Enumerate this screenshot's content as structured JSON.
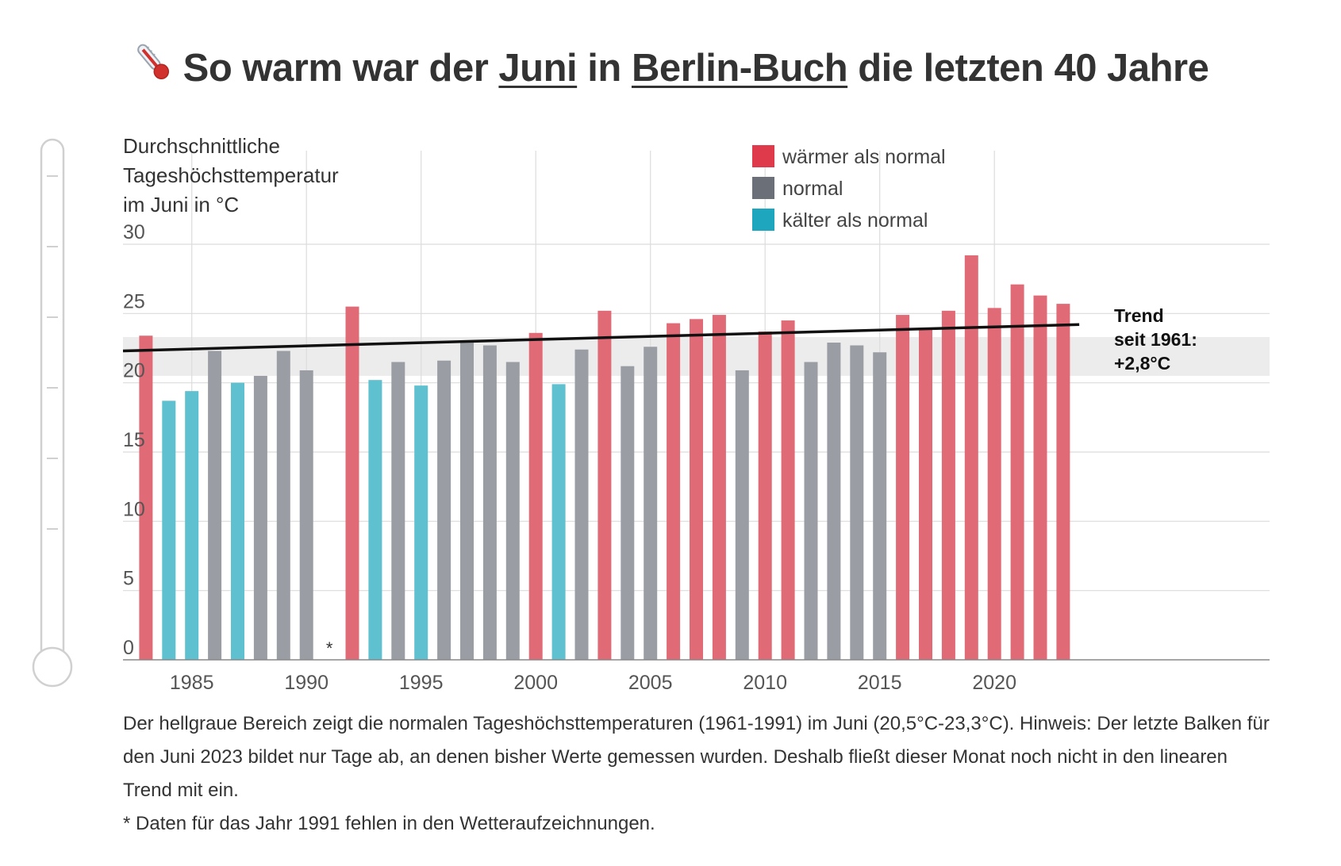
{
  "title": {
    "pre": "So warm war der ",
    "month": "Juni",
    "mid": " in ",
    "place": "Berlin-Buch",
    "post": " die letzten 40 Jahre"
  },
  "colors": {
    "warm": "#e06a76",
    "normal": "#9a9ea4",
    "cold": "#5fc0cf",
    "legend_warm": "#de3a4c",
    "legend_normal": "#6b7078",
    "legend_cold": "#1ea6be",
    "normal_band": "#ececec",
    "grid": "#dcdcdc",
    "trend": "#111111"
  },
  "legend": [
    {
      "key": "warm",
      "label": "wärmer als normal"
    },
    {
      "key": "normal",
      "label": "normal"
    },
    {
      "key": "cold",
      "label": "kälter als normal"
    }
  ],
  "trend_label": "Trend\nseit 1961:\n+2,8°C",
  "missing_marker": "*",
  "footnote": {
    "main": "Der hellgraue Bereich zeigt die normalen Tageshöchsttemperaturen (1961-1991) im Juni (20,5°C-23,3°C). Hinweis: Der letzte Balken für den Juni 2023 bildet nur Tage ab, an denen bisher Werte gemessen wurden. Deshalb fließt dieser Monat noch nicht in den linearen Trend mit ein.",
    "missing": "* Daten für das Jahr 1991 fehlen in den Wetteraufzeichnungen."
  },
  "chart_data": {
    "type": "bar",
    "title": "So warm war der Juni in Berlin-Buch die letzten 40 Jahre",
    "ylabel": "Durchschnittliche\nTageshöchsttemperatur\nim Juni in °C",
    "xlabel": "",
    "ylim": [
      0,
      30
    ],
    "yticks": [
      0,
      5,
      10,
      15,
      20,
      25,
      30
    ],
    "xticks": [
      1985,
      1990,
      1995,
      2000,
      2005,
      2010,
      2015,
      2020
    ],
    "x_range": [
      1982,
      2032
    ],
    "grid": true,
    "legend_position": "top",
    "normal_range": [
      20.5,
      23.3
    ],
    "trend": {
      "start_year": 1982,
      "start_value": 22.3,
      "end_year": 2023.7,
      "end_value": 24.2
    },
    "missing_years": [
      1991
    ],
    "bars": [
      {
        "year": 1983,
        "value": 23.4,
        "cat": "warm"
      },
      {
        "year": 1984,
        "value": 18.7,
        "cat": "cold"
      },
      {
        "year": 1985,
        "value": 19.4,
        "cat": "cold"
      },
      {
        "year": 1986,
        "value": 22.3,
        "cat": "normal"
      },
      {
        "year": 1987,
        "value": 20.0,
        "cat": "cold"
      },
      {
        "year": 1988,
        "value": 20.5,
        "cat": "normal"
      },
      {
        "year": 1989,
        "value": 22.3,
        "cat": "normal"
      },
      {
        "year": 1990,
        "value": 20.9,
        "cat": "normal"
      },
      {
        "year": 1992,
        "value": 25.5,
        "cat": "warm"
      },
      {
        "year": 1993,
        "value": 20.2,
        "cat": "cold"
      },
      {
        "year": 1994,
        "value": 21.5,
        "cat": "normal"
      },
      {
        "year": 1995,
        "value": 19.8,
        "cat": "cold"
      },
      {
        "year": 1996,
        "value": 21.6,
        "cat": "normal"
      },
      {
        "year": 1997,
        "value": 22.9,
        "cat": "normal"
      },
      {
        "year": 1998,
        "value": 22.7,
        "cat": "normal"
      },
      {
        "year": 1999,
        "value": 21.5,
        "cat": "normal"
      },
      {
        "year": 2000,
        "value": 23.6,
        "cat": "warm"
      },
      {
        "year": 2001,
        "value": 19.9,
        "cat": "cold"
      },
      {
        "year": 2002,
        "value": 22.4,
        "cat": "normal"
      },
      {
        "year": 2003,
        "value": 25.2,
        "cat": "warm"
      },
      {
        "year": 2004,
        "value": 21.2,
        "cat": "normal"
      },
      {
        "year": 2005,
        "value": 22.6,
        "cat": "normal"
      },
      {
        "year": 2006,
        "value": 24.3,
        "cat": "warm"
      },
      {
        "year": 2007,
        "value": 24.6,
        "cat": "warm"
      },
      {
        "year": 2008,
        "value": 24.9,
        "cat": "warm"
      },
      {
        "year": 2009,
        "value": 20.9,
        "cat": "normal"
      },
      {
        "year": 2010,
        "value": 23.7,
        "cat": "warm"
      },
      {
        "year": 2011,
        "value": 24.5,
        "cat": "warm"
      },
      {
        "year": 2012,
        "value": 21.5,
        "cat": "normal"
      },
      {
        "year": 2013,
        "value": 22.9,
        "cat": "normal"
      },
      {
        "year": 2014,
        "value": 22.7,
        "cat": "normal"
      },
      {
        "year": 2015,
        "value": 22.2,
        "cat": "normal"
      },
      {
        "year": 2016,
        "value": 24.9,
        "cat": "warm"
      },
      {
        "year": 2017,
        "value": 23.9,
        "cat": "warm"
      },
      {
        "year": 2018,
        "value": 25.2,
        "cat": "warm"
      },
      {
        "year": 2019,
        "value": 29.2,
        "cat": "warm"
      },
      {
        "year": 2020,
        "value": 25.4,
        "cat": "warm"
      },
      {
        "year": 2021,
        "value": 27.1,
        "cat": "warm"
      },
      {
        "year": 2022,
        "value": 26.3,
        "cat": "warm"
      },
      {
        "year": 2023,
        "value": 25.7,
        "cat": "warm"
      }
    ]
  }
}
